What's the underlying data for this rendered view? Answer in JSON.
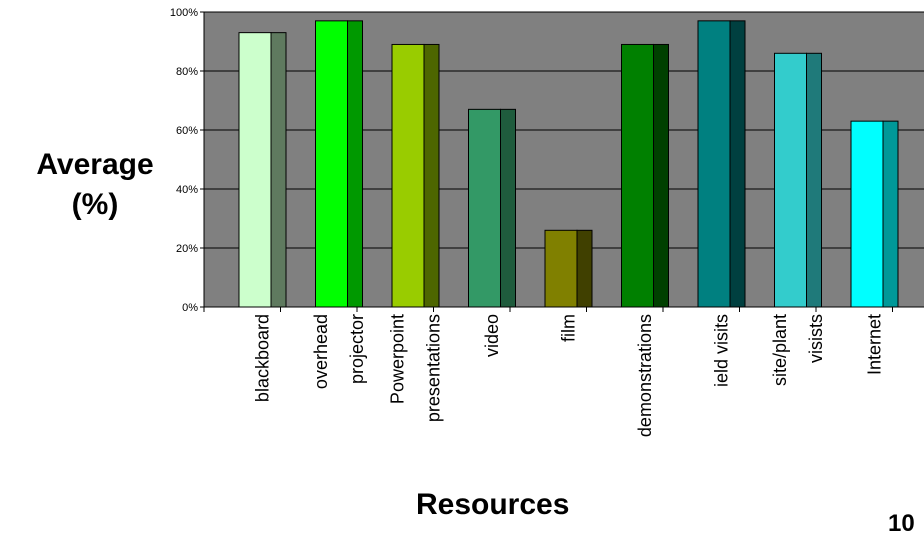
{
  "chart_data": {
    "type": "bar",
    "categories": [
      "blackboard",
      "overhead projector",
      "Powerpoint presentations",
      "video",
      "film",
      "demonstrations",
      "field visits",
      "site/plant visists",
      "Internet"
    ],
    "category_lines": [
      [
        "blackboard"
      ],
      [
        "overhead",
        "projector"
      ],
      [
        "Powerpoint",
        "presentations"
      ],
      [
        "video"
      ],
      [
        "film"
      ],
      [
        "demonstrations"
      ],
      [
        "ield visits"
      ],
      [
        "site/plant",
        "visists"
      ],
      [
        "Internet"
      ]
    ],
    "values": [
      93,
      97,
      89,
      67,
      26,
      89,
      97,
      86,
      63
    ],
    "colors": [
      "#ccffcc",
      "#00ff00",
      "#99cc00",
      "#339966",
      "#808000",
      "#008000",
      "#008080",
      "#33cccc",
      "#00ffff"
    ],
    "side_colors": [
      "#5f7a5f",
      "#009900",
      "#4d6600",
      "#1f5c3d",
      "#404000",
      "#004000",
      "#004040",
      "#1f7a7a",
      "#009999"
    ],
    "ylim": [
      0,
      100
    ],
    "yticks": [
      "0%",
      "20%",
      "40%",
      "60%",
      "80%",
      "100%"
    ],
    "ylabel": "Average (%)",
    "ylabel_lines": [
      "Average",
      "(%)"
    ],
    "xlabel": "Resources",
    "plot_background": "#808080",
    "grid": true,
    "legend": "none"
  },
  "page_number": "10"
}
